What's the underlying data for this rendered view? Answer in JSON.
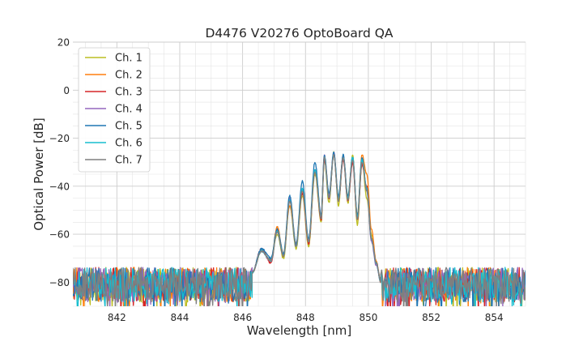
{
  "chart_data": {
    "type": "line",
    "title": "D4476 V20276 OptoBoard QA",
    "xlabel": "Wavelength [nm]",
    "ylabel": "Optical Power [dB]",
    "xlim": [
      840.6,
      855.0
    ],
    "ylim": [
      -90,
      20
    ],
    "x_major_ticks": [
      842,
      844,
      846,
      848,
      850,
      852,
      854
    ],
    "x_tick_labels": [
      "842",
      "844",
      "846",
      "848",
      "850",
      "852",
      "854"
    ],
    "y_major_ticks": [
      -80,
      -60,
      -40,
      -20,
      0,
      20
    ],
    "y_tick_labels": [
      "−80",
      "−60",
      "−40",
      "−20",
      "0",
      "20"
    ],
    "x_minor_step": 0.5,
    "y_minor_step": 5,
    "grid": true,
    "legend_position": "top-left",
    "noise_floor": {
      "mean": -81,
      "spread": 9
    },
    "series": [
      {
        "name": "Ch. 1",
        "color": "#bcbd22",
        "x": [
          846.3,
          846.6,
          846.9,
          847.1,
          847.3,
          847.5,
          847.7,
          847.9,
          848.1,
          848.3,
          848.5,
          848.6,
          848.75,
          848.9,
          849.05,
          849.2,
          849.35,
          849.5,
          849.65,
          849.8,
          849.95,
          850.1,
          850.25,
          850.4
        ],
        "y": [
          -76,
          -67,
          -71,
          -60,
          -70,
          -48,
          -66,
          -44,
          -65,
          -35,
          -55,
          -29,
          -47,
          -26,
          -48,
          -27,
          -47,
          -27,
          -56,
          -30,
          -45,
          -60,
          -72,
          -80
        ]
      },
      {
        "name": "Ch. 2",
        "color": "#ff7f0e",
        "x": [
          846.3,
          846.6,
          846.9,
          847.1,
          847.3,
          847.5,
          847.7,
          847.9,
          848.1,
          848.3,
          848.5,
          848.6,
          848.75,
          848.9,
          849.05,
          849.2,
          849.35,
          849.5,
          849.65,
          849.8,
          849.95,
          850.1,
          850.25,
          850.4
        ],
        "y": [
          -76,
          -67,
          -71,
          -57,
          -68,
          -48,
          -64,
          -42,
          -64,
          -34,
          -53,
          -28,
          -44,
          -27,
          -44,
          -28,
          -44,
          -28,
          -52,
          -27,
          -35,
          -58,
          -71,
          -80
        ]
      },
      {
        "name": "Ch. 3",
        "color": "#d62728",
        "x": [
          846.3,
          846.6,
          846.9,
          847.1,
          847.3,
          847.5,
          847.7,
          847.9,
          848.1,
          848.3,
          848.5,
          848.6,
          848.75,
          848.9,
          849.05,
          849.2,
          849.35,
          849.5,
          849.65,
          849.8,
          849.95,
          850.1,
          850.25,
          850.4
        ],
        "y": [
          -76,
          -66,
          -72,
          -58,
          -69,
          -46,
          -64,
          -43,
          -64,
          -33,
          -54,
          -29,
          -45,
          -27,
          -46,
          -29,
          -46,
          -30,
          -54,
          -31,
          -40,
          -62,
          -72,
          -80
        ]
      },
      {
        "name": "Ch. 4",
        "color": "#9467bd",
        "x": [
          846.3,
          846.6,
          846.9,
          847.1,
          847.3,
          847.5,
          847.7,
          847.9,
          848.1,
          848.3,
          848.5,
          848.6,
          848.75,
          848.9,
          849.05,
          849.2,
          849.35,
          849.5,
          849.65,
          849.8,
          849.95,
          850.1,
          850.25,
          850.4
        ],
        "y": [
          -76,
          -67,
          -71,
          -59,
          -69,
          -45,
          -65,
          -41,
          -63,
          -33,
          -52,
          -27,
          -44,
          -26,
          -45,
          -27,
          -45,
          -28,
          -53,
          -29,
          -42,
          -63,
          -73,
          -80
        ]
      },
      {
        "name": "Ch. 5",
        "color": "#1f77b4",
        "x": [
          846.3,
          846.6,
          846.9,
          847.1,
          847.3,
          847.5,
          847.7,
          847.9,
          848.1,
          848.3,
          848.5,
          848.6,
          848.75,
          848.9,
          849.05,
          849.2,
          849.35,
          849.5,
          849.65,
          849.8,
          849.95,
          850.1,
          850.25,
          850.4
        ],
        "y": [
          -76,
          -66,
          -70,
          -58,
          -68,
          -44,
          -64,
          -38,
          -62,
          -30,
          -52,
          -27,
          -43,
          -26,
          -44,
          -27,
          -44,
          -28,
          -52,
          -28,
          -41,
          -62,
          -72,
          -80
        ]
      },
      {
        "name": "Ch. 6",
        "color": "#17becf",
        "x": [
          846.3,
          846.6,
          846.9,
          847.1,
          847.3,
          847.5,
          847.7,
          847.9,
          848.1,
          848.3,
          848.5,
          848.6,
          848.75,
          848.9,
          849.05,
          849.2,
          849.35,
          849.5,
          849.65,
          849.8,
          849.95,
          850.1,
          850.25,
          850.4
        ],
        "y": [
          -76,
          -67,
          -71,
          -59,
          -69,
          -46,
          -65,
          -41,
          -63,
          -33,
          -53,
          -28,
          -45,
          -27,
          -45,
          -28,
          -45,
          -28,
          -53,
          -29,
          -41,
          -62,
          -72,
          -80
        ]
      },
      {
        "name": "Ch. 7",
        "color": "#7f7f7f",
        "x": [
          846.3,
          846.6,
          846.9,
          847.1,
          847.3,
          847.5,
          847.7,
          847.9,
          848.1,
          848.3,
          848.5,
          848.6,
          848.75,
          848.9,
          849.05,
          849.2,
          849.35,
          849.5,
          849.65,
          849.8,
          849.95,
          850.1,
          850.25,
          850.4
        ],
        "y": [
          -76,
          -67,
          -71,
          -59,
          -69,
          -46,
          -65,
          -42,
          -63,
          -34,
          -53,
          -28,
          -45,
          -27,
          -46,
          -28,
          -46,
          -29,
          -54,
          -30,
          -42,
          -62,
          -72,
          -80
        ]
      }
    ]
  }
}
